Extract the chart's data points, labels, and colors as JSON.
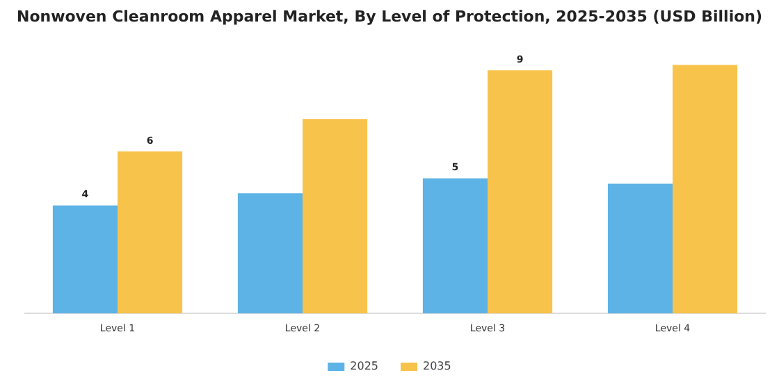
{
  "chart_data": {
    "type": "bar",
    "title": "Nonwoven Cleanroom Apparel Market, By Level of Protection, 2025-2035 (USD Billion)",
    "categories": [
      "Level 1",
      "Level 2",
      "Level 3",
      "Level 4"
    ],
    "series": [
      {
        "name": "2025",
        "color": "#5db2e6",
        "values": [
          4,
          4.45,
          5,
          4.8
        ],
        "value_labels": [
          "4",
          null,
          "5",
          null
        ]
      },
      {
        "name": "2035",
        "color": "#f8c34b",
        "values": [
          6,
          7.2,
          9,
          9.2
        ],
        "value_labels": [
          "6",
          null,
          "9",
          null
        ]
      }
    ],
    "tick_labels": "x",
    "grid": false,
    "legend": "bottom"
  }
}
